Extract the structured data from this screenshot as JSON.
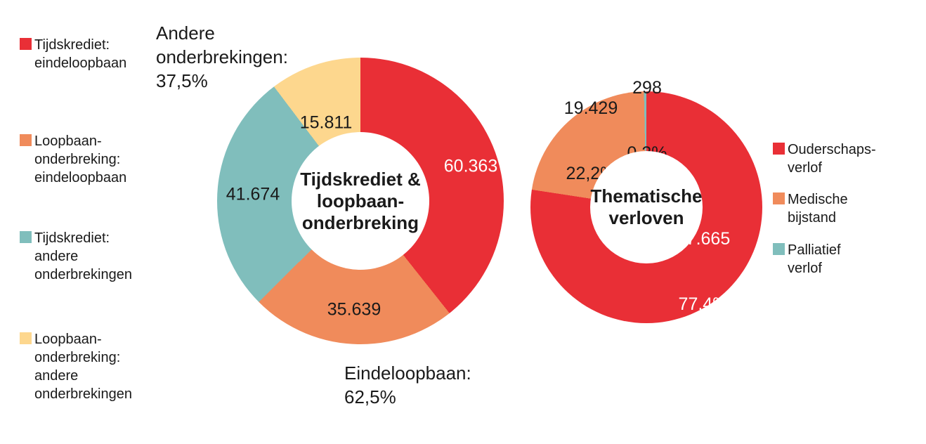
{
  "page": {
    "background": "#ffffff",
    "text_color": "#1a1a1a"
  },
  "palette": {
    "red": "#E92F36",
    "orange": "#F08B5B",
    "teal": "#80BEBC",
    "yellow": "#FDD78E",
    "white_label": "#FFFFFF"
  },
  "chart_data": [
    {
      "type": "pie",
      "subtype": "donut",
      "title": "Tijdskrediet & loopbaanonderbreking",
      "center_title": "Tijdskrediet &\nloopbaan-\nonderbreking",
      "legend_position": "left",
      "start_angle_deg": 0,
      "direction": "clockwise",
      "segments": [
        {
          "name": "Tijdskrediet: eindeloopbaan",
          "value": 60363,
          "value_display": "60.363",
          "color": "#E92F36",
          "label_color": "#FFFFFF"
        },
        {
          "name": "Loopbaan-onderbreking: eindeloopbaan",
          "value": 35639,
          "value_display": "35.639",
          "color": "#F08B5B",
          "label_color": "#1A1A1A"
        },
        {
          "name": "Tijdskrediet: andere onderbrekingen",
          "value": 41674,
          "value_display": "41.674",
          "color": "#80BEBC",
          "label_color": "#1A1A1A"
        },
        {
          "name": "Loopbaan-onderbreking: andere onderbrekingen",
          "value": 15811,
          "value_display": "15.811",
          "color": "#FDD78E",
          "label_color": "#1A1A1A"
        }
      ],
      "annotations": [
        {
          "id": "andere-onderbrekingen",
          "text": "Andere\nonderbrekingen:\n37,5%"
        },
        {
          "id": "eindeloopbaan",
          "text": "Eindeloopbaan:\n62,5%"
        }
      ]
    },
    {
      "type": "pie",
      "subtype": "donut",
      "title": "Thematische verloven",
      "center_title": "Thematische\nverloven",
      "legend_position": "right",
      "start_angle_deg": 0,
      "direction": "clockwise",
      "segments": [
        {
          "name": "Ouderschapsverlof",
          "value": 67665,
          "value_display": "67.665",
          "pct_display": "77,4%",
          "color": "#E92F36",
          "label_color": "#FFFFFF"
        },
        {
          "name": "Medische bijstand",
          "value": 19429,
          "value_display": "19.429",
          "pct_display": "22,2%",
          "color": "#F08B5B",
          "label_color": "#1A1A1A"
        },
        {
          "name": "Palliatief verlof",
          "value": 298,
          "value_display": "298",
          "pct_display": "0,3%",
          "color": "#80BEBC",
          "label_color": "#1A1A1A"
        }
      ]
    }
  ],
  "legend_left": {
    "items": [
      {
        "label": "Tijdskrediet:\neindeloopbaan",
        "color": "#E92F36"
      },
      {
        "label": "Loopbaan-\nonderbreking:\neindeloopbaan",
        "color": "#F08B5B"
      },
      {
        "label": "Tijdskrediet:\nandere\nonderbrekingen",
        "color": "#80BEBC"
      },
      {
        "label": "Loopbaan-\nonderbreking:\nandere\nonderbrekingen",
        "color": "#FDD78E"
      }
    ]
  },
  "legend_right": {
    "items": [
      {
        "label": "Ouderschaps-\nverlof",
        "color": "#E92F36"
      },
      {
        "label": "Medische\nbijstand",
        "color": "#F08B5B"
      },
      {
        "label": "Palliatief\nverlof",
        "color": "#80BEBC"
      }
    ]
  }
}
